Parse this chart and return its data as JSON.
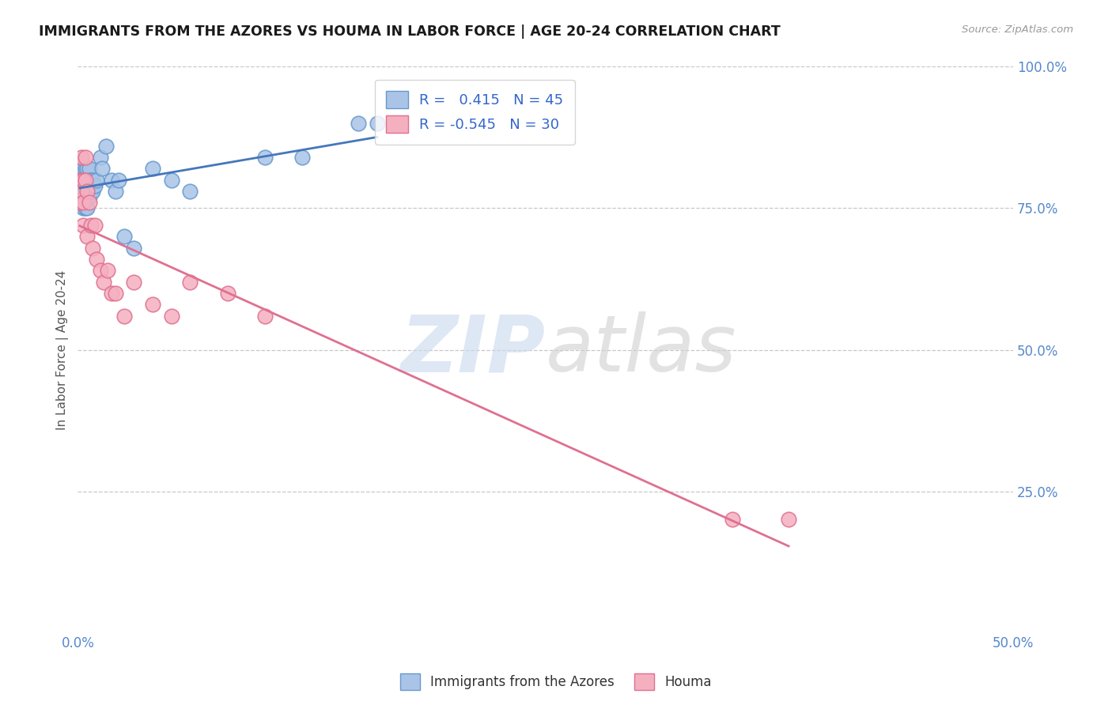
{
  "title": "IMMIGRANTS FROM THE AZORES VS HOUMA IN LABOR FORCE | AGE 20-24 CORRELATION CHART",
  "source": "Source: ZipAtlas.com",
  "ylabel": "In Labor Force | Age 20-24",
  "xlim": [
    0.0,
    0.5
  ],
  "ylim": [
    0.0,
    1.0
  ],
  "xtick_positions": [
    0.0,
    0.1,
    0.2,
    0.3,
    0.4,
    0.5
  ],
  "xticklabels": [
    "0.0%",
    "",
    "",
    "",
    "",
    "50.0%"
  ],
  "yticks_right": [
    0.25,
    0.5,
    0.75,
    1.0
  ],
  "ytick_labels_right": [
    "25.0%",
    "50.0%",
    "75.0%",
    "100.0%"
  ],
  "grid_color": "#c8c8c8",
  "background_color": "#ffffff",
  "azores_color": "#aac4e8",
  "azores_edge_color": "#6699cc",
  "houma_color": "#f5b0c0",
  "houma_edge_color": "#e07090",
  "azores_line_color": "#4477bb",
  "houma_line_color": "#e07090",
  "R_azores": 0.415,
  "N_azores": 45,
  "R_houma": -0.545,
  "N_houma": 30,
  "legend_label_azores": "Immigrants from the Azores",
  "legend_label_houma": "Houma",
  "azores_x": [
    0.001,
    0.001,
    0.002,
    0.002,
    0.002,
    0.003,
    0.003,
    0.003,
    0.003,
    0.003,
    0.004,
    0.004,
    0.004,
    0.004,
    0.004,
    0.005,
    0.005,
    0.005,
    0.005,
    0.005,
    0.006,
    0.006,
    0.006,
    0.006,
    0.007,
    0.007,
    0.008,
    0.008,
    0.009,
    0.01,
    0.012,
    0.013,
    0.015,
    0.018,
    0.02,
    0.022,
    0.025,
    0.03,
    0.04,
    0.05,
    0.06,
    0.1,
    0.12,
    0.15,
    0.16
  ],
  "azores_y": [
    0.82,
    0.78,
    0.83,
    0.8,
    0.78,
    0.82,
    0.8,
    0.79,
    0.77,
    0.75,
    0.82,
    0.8,
    0.78,
    0.77,
    0.75,
    0.82,
    0.8,
    0.79,
    0.77,
    0.75,
    0.82,
    0.8,
    0.79,
    0.77,
    0.8,
    0.78,
    0.8,
    0.78,
    0.79,
    0.8,
    0.84,
    0.82,
    0.86,
    0.8,
    0.78,
    0.8,
    0.7,
    0.68,
    0.82,
    0.8,
    0.78,
    0.84,
    0.84,
    0.9,
    0.9
  ],
  "houma_x": [
    0.001,
    0.001,
    0.002,
    0.002,
    0.003,
    0.003,
    0.003,
    0.004,
    0.004,
    0.005,
    0.005,
    0.006,
    0.007,
    0.008,
    0.009,
    0.01,
    0.012,
    0.014,
    0.016,
    0.018,
    0.02,
    0.025,
    0.03,
    0.04,
    0.05,
    0.06,
    0.08,
    0.1,
    0.35,
    0.38
  ],
  "houma_y": [
    0.8,
    0.76,
    0.84,
    0.78,
    0.8,
    0.76,
    0.72,
    0.84,
    0.8,
    0.78,
    0.7,
    0.76,
    0.72,
    0.68,
    0.72,
    0.66,
    0.64,
    0.62,
    0.64,
    0.6,
    0.6,
    0.56,
    0.62,
    0.58,
    0.56,
    0.62,
    0.6,
    0.56,
    0.2,
    0.2
  ]
}
